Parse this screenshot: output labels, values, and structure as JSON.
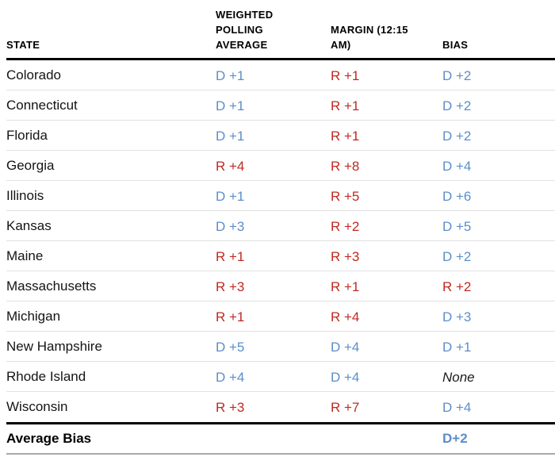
{
  "chart_data": {
    "type": "table",
    "columns": [
      "STATE",
      "WEIGHTED POLLING AVERAGE",
      "MARGIN (12:15 AM)",
      "BIAS"
    ],
    "rows": [
      {
        "state": "Colorado",
        "weighted_polling_average": "D +1",
        "margin": "R +1",
        "bias": "D +2"
      },
      {
        "state": "Connecticut",
        "weighted_polling_average": "D +1",
        "margin": "R +1",
        "bias": "D +2"
      },
      {
        "state": "Florida",
        "weighted_polling_average": "D +1",
        "margin": "R +1",
        "bias": "D +2"
      },
      {
        "state": "Georgia",
        "weighted_polling_average": "R +4",
        "margin": "R +8",
        "bias": "D +4"
      },
      {
        "state": "Illinois",
        "weighted_polling_average": "D +1",
        "margin": "R +5",
        "bias": "D +6"
      },
      {
        "state": "Kansas",
        "weighted_polling_average": "D +3",
        "margin": "R +2",
        "bias": "D +5"
      },
      {
        "state": "Maine",
        "weighted_polling_average": "R +1",
        "margin": "R +3",
        "bias": "D +2"
      },
      {
        "state": "Massachusetts",
        "weighted_polling_average": "R +3",
        "margin": "R +1",
        "bias": "R +2"
      },
      {
        "state": "Michigan",
        "weighted_polling_average": "R +1",
        "margin": "R +4",
        "bias": "D +3"
      },
      {
        "state": "New Hampshire",
        "weighted_polling_average": "D +5",
        "margin": "D +4",
        "bias": "D +1"
      },
      {
        "state": "Rhode Island",
        "weighted_polling_average": "D +4",
        "margin": "D +4",
        "bias": "None"
      },
      {
        "state": "Wisconsin",
        "weighted_polling_average": "R +3",
        "margin": "R +7",
        "bias": "D +4"
      }
    ],
    "footer": {
      "label": "Average Bias",
      "bias": "D+2"
    }
  },
  "colors": {
    "dem_blue": "#5b8ec9",
    "rep_red": "#bf2a22",
    "text": "#141414",
    "row_divider": "#e2e2e2",
    "heavy_rule": "#000000",
    "bottom_rule": "#a9a9a9"
  }
}
